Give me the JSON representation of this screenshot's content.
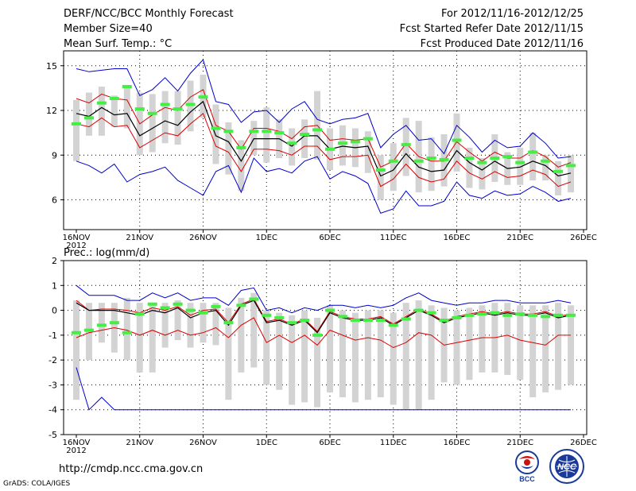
{
  "header": {
    "title": "DERF/NCC/BCC Monthly Forecast",
    "member_size": "Member Size=40",
    "variable": "Mean Surf. Temp.: °C",
    "forecast_period": "For 2012/11/16-2012/12/25",
    "started_date": "Fcst Started Refer Date 2012/11/15",
    "produced_date": "Fcst Produced Date 2012/11/16"
  },
  "footer": {
    "url": "http://cmdp.ncc.cma.gov.cn",
    "credit": "GrADS: COLA/IGES",
    "logo_bcc": "BCC",
    "logo_ncc": "NCC"
  },
  "colors": {
    "envelope": "#0000cc",
    "spread": "#dd0000",
    "mean": "#000000",
    "member_marker": "#44ee44",
    "box": "#d3d3d3",
    "grid": "#000000"
  },
  "chart_data": [
    {
      "type": "box-ensemble",
      "title": "Mean Surf. Temp.: °C",
      "ylabel": "°C",
      "ylim": [
        4,
        16
      ],
      "yticks": [
        6,
        9,
        12,
        15
      ],
      "xlim": [
        0,
        40
      ],
      "xticks": [
        {
          "day": 0,
          "label": "16NOV"
        },
        {
          "day": 5,
          "label": "21NOV"
        },
        {
          "day": 10,
          "label": "26NOV"
        },
        {
          "day": 15,
          "label": "1DEC"
        },
        {
          "day": 20,
          "label": "6DEC"
        },
        {
          "day": 25,
          "label": "11DEC"
        },
        {
          "day": 30,
          "label": "16DEC"
        },
        {
          "day": 35,
          "label": "21DEC"
        },
        {
          "day": 40,
          "label": "26DEC"
        }
      ],
      "year_label": "2012",
      "days": [
        0,
        1,
        2,
        3,
        4,
        5,
        6,
        7,
        8,
        9,
        10,
        11,
        12,
        13,
        14,
        15,
        16,
        17,
        18,
        19,
        20,
        21,
        22,
        23,
        24,
        25,
        26,
        27,
        28,
        29,
        30,
        31,
        32,
        33,
        34,
        35,
        36,
        37,
        38,
        39
      ],
      "mean": [
        11.8,
        11.6,
        12.2,
        11.7,
        11.8,
        10.3,
        10.8,
        11.3,
        11.0,
        11.9,
        12.6,
        10.3,
        9.9,
        8.6,
        10.1,
        10.1,
        10.1,
        9.6,
        10.3,
        10.3,
        9.4,
        9.6,
        9.5,
        9.6,
        7.6,
        8.0,
        9.1,
        8.2,
        7.9,
        8.0,
        9.3,
        8.5,
        8.0,
        8.6,
        8.1,
        8.2,
        8.6,
        8.3,
        7.6,
        7.8
      ],
      "upper": [
        12.8,
        12.5,
        13.1,
        12.8,
        12.7,
        11.1,
        11.7,
        12.2,
        12.0,
        12.9,
        13.4,
        11.0,
        10.6,
        9.4,
        10.8,
        10.8,
        10.6,
        10.1,
        10.9,
        11.0,
        10.0,
        10.1,
        10.0,
        10.1,
        8.2,
        8.6,
        9.8,
        8.9,
        8.6,
        8.6,
        9.9,
        9.2,
        8.6,
        9.2,
        8.8,
        8.8,
        9.3,
        8.9,
        8.2,
        8.5
      ],
      "lower": [
        11.1,
        10.9,
        11.5,
        10.9,
        11.0,
        9.5,
        10.0,
        10.5,
        10.3,
        11.1,
        11.8,
        9.6,
        9.2,
        7.9,
        9.4,
        9.4,
        9.3,
        9.0,
        9.6,
        9.6,
        8.7,
        8.9,
        8.9,
        9.0,
        6.9,
        7.4,
        8.4,
        7.5,
        7.2,
        7.4,
        8.6,
        7.8,
        7.4,
        7.9,
        7.5,
        7.6,
        8.0,
        7.7,
        6.9,
        7.2
      ],
      "max": [
        14.8,
        14.6,
        14.7,
        14.8,
        14.8,
        13.0,
        13.4,
        14.2,
        13.3,
        14.5,
        15.4,
        12.6,
        12.4,
        11.2,
        11.9,
        12.0,
        11.2,
        12.1,
        12.6,
        11.4,
        11.1,
        11.4,
        11.5,
        11.8,
        9.5,
        10.4,
        11.0,
        10.0,
        10.1,
        9.1,
        11.0,
        10.2,
        9.2,
        10.0,
        9.5,
        9.6,
        10.5,
        9.8,
        8.8,
        8.9
      ],
      "min": [
        8.6,
        8.3,
        7.8,
        8.4,
        7.2,
        7.7,
        7.9,
        8.2,
        7.3,
        6.8,
        6.3,
        7.9,
        8.3,
        6.5,
        8.8,
        7.9,
        8.1,
        7.8,
        8.6,
        8.9,
        7.4,
        7.9,
        7.6,
        7.1,
        5.1,
        5.4,
        6.6,
        5.6,
        5.6,
        5.9,
        7.2,
        6.3,
        6.1,
        6.6,
        6.3,
        6.4,
        6.9,
        6.5,
        5.9,
        6.1
      ],
      "box_high": [
        12.7,
        13.2,
        13.6,
        13.0,
        13.6,
        13.2,
        13.1,
        13.3,
        13.3,
        14.0,
        14.4,
        12.4,
        11.2,
        10.0,
        11.3,
        12.2,
        11.4,
        10.8,
        11.4,
        13.3,
        10.8,
        11.0,
        10.8,
        10.6,
        9.0,
        9.8,
        11.5,
        11.3,
        10.2,
        10.4,
        11.8,
        9.5,
        8.8,
        10.4,
        9.2,
        9.5,
        10.5,
        9.0,
        8.6,
        9.0
      ],
      "box_low": [
        8.6,
        10.3,
        10.3,
        10.9,
        10.8,
        9.0,
        9.2,
        9.8,
        9.7,
        10.6,
        11.5,
        8.4,
        7.7,
        6.6,
        9.0,
        8.5,
        8.8,
        8.3,
        8.8,
        8.7,
        8.0,
        8.3,
        8.2,
        7.8,
        6.0,
        6.6,
        7.6,
        6.5,
        6.6,
        6.9,
        7.9,
        6.8,
        6.7,
        7.2,
        7.0,
        7.0,
        7.3,
        7.3,
        6.3,
        6.5
      ],
      "marker": [
        11.1,
        11.5,
        12.5,
        12.8,
        13.6,
        12.1,
        11.8,
        12.4,
        12.1,
        12.4,
        12.9,
        10.8,
        10.6,
        9.5,
        10.6,
        10.6,
        10.5,
        9.8,
        10.4,
        10.7,
        9.4,
        9.8,
        9.9,
        10.1,
        8.0,
        8.6,
        9.7,
        8.6,
        8.8,
        8.7,
        10.0,
        8.8,
        8.5,
        8.8,
        8.9,
        8.5,
        9.2,
        8.6,
        7.9,
        8.3
      ]
    },
    {
      "type": "box-ensemble",
      "title": "Prec.: log(mm/d)",
      "ylabel": "log(mm/d)",
      "ylim": [
        -5,
        2
      ],
      "yticks": [
        -5,
        -4,
        -3,
        -2,
        -1,
        0,
        1,
        2
      ],
      "xlim": [
        0,
        40
      ],
      "xticks": [
        {
          "day": 0,
          "label": "16NOV"
        },
        {
          "day": 5,
          "label": "21NOV"
        },
        {
          "day": 10,
          "label": "26NOV"
        },
        {
          "day": 15,
          "label": "1DEC"
        },
        {
          "day": 20,
          "label": "6DEC"
        },
        {
          "day": 25,
          "label": "11DEC"
        },
        {
          "day": 30,
          "label": "16DEC"
        },
        {
          "day": 35,
          "label": "21DEC"
        },
        {
          "day": 40,
          "label": "26DEC"
        }
      ],
      "year_label": "2012",
      "days": [
        0,
        1,
        2,
        3,
        4,
        5,
        6,
        7,
        8,
        9,
        10,
        11,
        12,
        13,
        14,
        15,
        16,
        17,
        18,
        19,
        20,
        21,
        22,
        23,
        24,
        25,
        26,
        27,
        28,
        29,
        30,
        31,
        32,
        33,
        34,
        35,
        36,
        37,
        38,
        39
      ],
      "mean": [
        0.3,
        0.0,
        0.0,
        0.0,
        -0.1,
        -0.2,
        0.0,
        -0.1,
        0.1,
        -0.3,
        -0.1,
        0.0,
        -0.6,
        0.2,
        0.4,
        -0.5,
        -0.4,
        -0.6,
        -0.4,
        -0.9,
        -0.1,
        -0.3,
        -0.4,
        -0.4,
        -0.3,
        -0.6,
        -0.3,
        0.0,
        -0.2,
        -0.5,
        -0.3,
        -0.2,
        -0.1,
        -0.2,
        -0.1,
        -0.2,
        -0.2,
        -0.1,
        -0.3,
        -0.2
      ],
      "upper": [
        0.4,
        0.0,
        0.05,
        0.05,
        0.0,
        -0.1,
        0.1,
        0.0,
        0.15,
        -0.2,
        0.0,
        0.05,
        -0.5,
        0.25,
        0.45,
        -0.45,
        -0.35,
        -0.55,
        -0.35,
        -0.85,
        -0.05,
        -0.25,
        -0.35,
        -0.35,
        -0.25,
        -0.55,
        -0.25,
        0.05,
        -0.15,
        -0.45,
        -0.25,
        -0.15,
        -0.05,
        -0.15,
        -0.05,
        -0.15,
        -0.15,
        -0.05,
        -0.25,
        -0.15
      ],
      "lower": [
        -1.1,
        -0.9,
        -0.8,
        -0.7,
        -0.8,
        -1.0,
        -0.8,
        -1.0,
        -0.8,
        -1.0,
        -0.9,
        -0.7,
        -1.1,
        -0.6,
        -0.3,
        -1.3,
        -1.0,
        -1.3,
        -1.0,
        -1.4,
        -0.8,
        -1.0,
        -1.2,
        -1.1,
        -1.2,
        -1.5,
        -1.3,
        -0.9,
        -1.0,
        -1.4,
        -1.3,
        -1.2,
        -1.1,
        -1.1,
        -1.0,
        -1.2,
        -1.3,
        -1.4,
        -1.0,
        -1.0
      ],
      "max": [
        1.0,
        0.6,
        0.6,
        0.6,
        0.4,
        0.4,
        0.7,
        0.5,
        0.7,
        0.4,
        0.5,
        0.5,
        0.2,
        0.8,
        0.9,
        0.0,
        0.1,
        -0.1,
        0.1,
        0.0,
        0.2,
        0.2,
        0.1,
        0.2,
        0.1,
        0.2,
        0.5,
        0.7,
        0.4,
        0.3,
        0.2,
        0.3,
        0.3,
        0.4,
        0.4,
        0.3,
        0.3,
        0.3,
        0.4,
        0.3
      ],
      "min": [
        -2.3,
        -4.0,
        -3.5,
        -4.0,
        -4.0,
        -4.0,
        -4.0,
        -4.0,
        -4.0,
        -4.0,
        -4.0,
        -4.0,
        -4.0,
        -4.0,
        -4.0,
        -4.0,
        -4.0,
        -4.0,
        -4.0,
        -4.0,
        -4.0,
        -4.0,
        -4.0,
        -4.0,
        -4.0,
        -4.0,
        -4.0,
        -4.0,
        -4.0,
        -4.0,
        -4.0,
        -4.0,
        -4.0,
        -4.0,
        -4.0,
        -4.0,
        -4.0,
        -4.0,
        -4.0,
        -4.0
      ],
      "box_high": [
        0.4,
        0.3,
        0.3,
        0.3,
        0.5,
        0.3,
        0.3,
        0.3,
        0.4,
        0.3,
        0.3,
        0.3,
        0.1,
        0.5,
        0.7,
        0.0,
        -0.1,
        -0.2,
        0.0,
        -0.3,
        0.2,
        0.0,
        -0.1,
        0.0,
        0.0,
        -0.1,
        0.3,
        0.4,
        0.2,
        0.1,
        0.0,
        0.1,
        0.2,
        0.3,
        0.3,
        0.2,
        0.2,
        0.2,
        0.3,
        0.2
      ],
      "box_low": [
        -3.6,
        -2.0,
        -1.3,
        -1.7,
        -2.0,
        -2.5,
        -2.5,
        -1.5,
        -1.2,
        -1.5,
        -1.3,
        -1.4,
        -3.6,
        -2.5,
        -2.3,
        -3.0,
        -3.2,
        -3.8,
        -3.7,
        -3.9,
        -3.3,
        -3.5,
        -3.7,
        -3.6,
        -3.5,
        -3.8,
        -4.0,
        -4.0,
        -3.6,
        -2.9,
        -3.0,
        -2.8,
        -2.5,
        -2.5,
        -2.6,
        -2.8,
        -3.5,
        -3.3,
        -3.2,
        -3.0
      ],
      "marker": [
        -0.9,
        -0.8,
        -0.6,
        -0.5,
        -0.9,
        -0.15,
        0.25,
        0.1,
        0.25,
        0.0,
        -0.1,
        0.15,
        -0.5,
        0.2,
        0.45,
        -0.2,
        -0.3,
        -0.5,
        -0.4,
        -1.0,
        0.0,
        -0.25,
        -0.4,
        -0.4,
        -0.4,
        -0.6,
        -0.35,
        0.0,
        -0.1,
        -0.4,
        -0.3,
        -0.2,
        -0.15,
        -0.1,
        -0.2,
        -0.15,
        -0.2,
        -0.25,
        -0.2,
        -0.2
      ]
    }
  ]
}
